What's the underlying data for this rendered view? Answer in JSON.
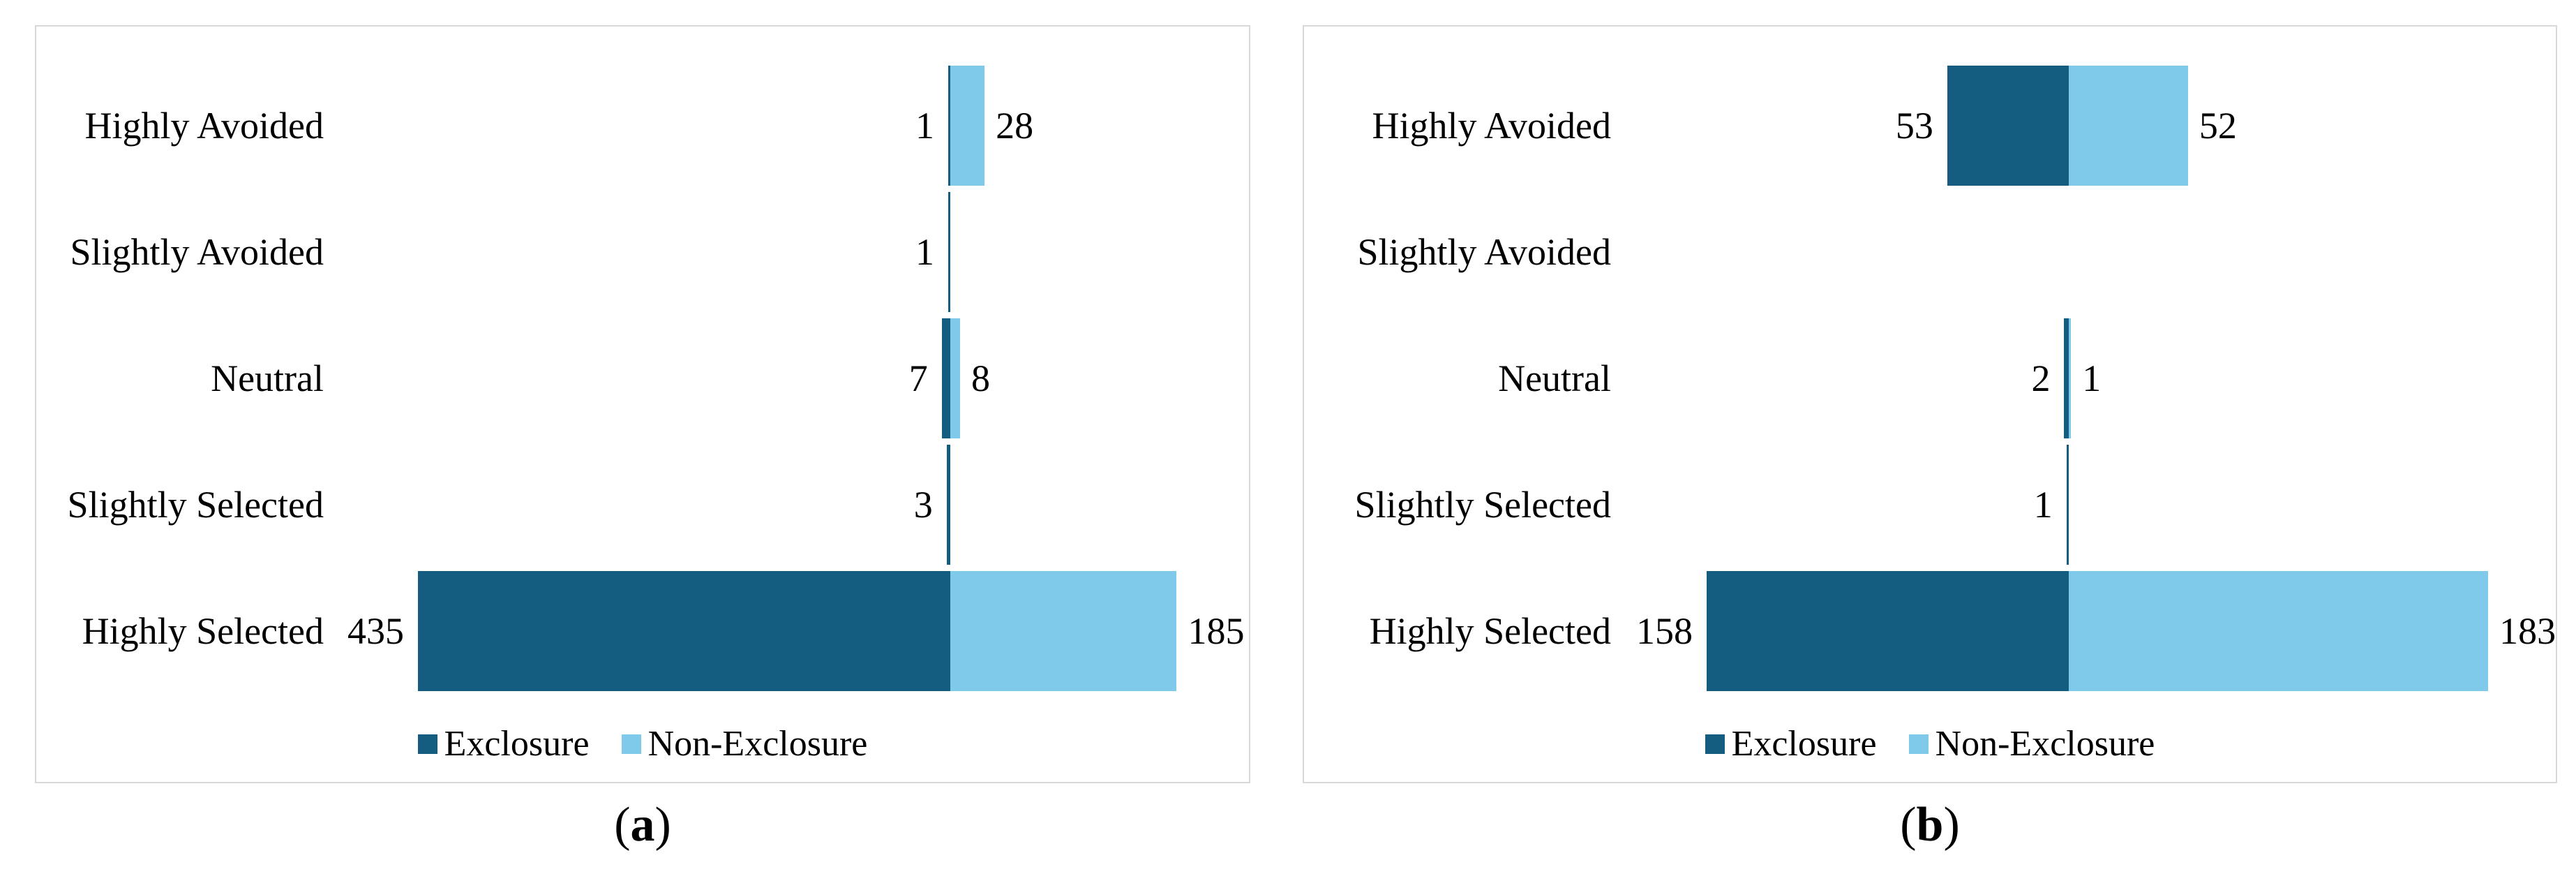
{
  "figure": {
    "panels": [
      {
        "id": "a",
        "caption": {
          "open": "(",
          "letter": "a",
          "close": ")"
        }
      },
      {
        "id": "b",
        "caption": {
          "open": "(",
          "letter": "b",
          "close": ")"
        }
      }
    ]
  },
  "colors": {
    "exclosure": "#155D80",
    "non_exclosure": "#7FC9EA",
    "panel_border": "#D8D8D8",
    "text": "#000000"
  },
  "chart_data": [
    {
      "type": "bar",
      "variant": "diverging-horizontal",
      "panel": "a",
      "title": "",
      "categories": [
        "Highly Avoided",
        "Slightly Avoided",
        "Neutral",
        "Slightly Selected",
        "Highly Selected"
      ],
      "series": [
        {
          "name": "Exclosure",
          "side": "left",
          "color": "#155D80",
          "values": [
            1,
            1,
            7,
            3,
            435
          ]
        },
        {
          "name": "Non-Exclosure",
          "side": "right",
          "color": "#7FC9EA",
          "values": [
            28,
            null,
            8,
            null,
            185
          ]
        }
      ],
      "data_labels": true,
      "legend_position": "bottom",
      "gridlines": false,
      "axis": "center-zero"
    },
    {
      "type": "bar",
      "variant": "diverging-horizontal",
      "panel": "b",
      "title": "",
      "categories": [
        "Highly Avoided",
        "Slightly Avoided",
        "Neutral",
        "Slightly Selected",
        "Highly Selected"
      ],
      "series": [
        {
          "name": "Exclosure",
          "side": "left",
          "color": "#155D80",
          "values": [
            53,
            null,
            2,
            1,
            158
          ]
        },
        {
          "name": "Non-Exclosure",
          "side": "right",
          "color": "#7FC9EA",
          "values": [
            52,
            null,
            1,
            null,
            183
          ]
        }
      ],
      "data_labels": true,
      "legend_position": "bottom",
      "gridlines": false,
      "axis": "center-zero"
    }
  ]
}
